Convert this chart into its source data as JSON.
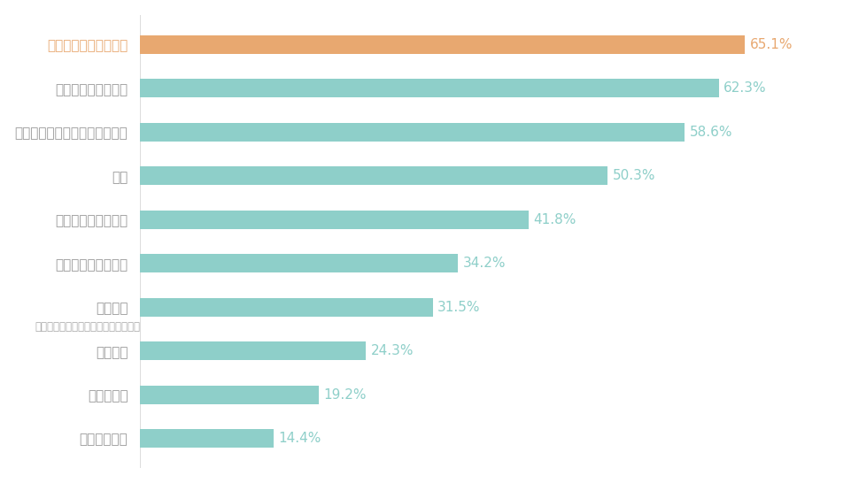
{
  "categories": [
    "趣味・余暇の過ごし方",
    "消費・お金の使い方",
    "仕事とプライベートのバランス",
    "健康",
    "友人・知人との関係",
    "家族・親戚との関係",
    "金融資産",
    "夢・目標",
    "老後の生活",
    "住居・居住地"
  ],
  "category_subtitles": [
    "",
    "",
    "",
    "",
    "",
    "",
    "（貯蓄・株式・保険・投資信託など）",
    "",
    "",
    ""
  ],
  "values": [
    65.1,
    62.3,
    58.6,
    50.3,
    41.8,
    34.2,
    31.5,
    24.3,
    19.2,
    14.4
  ],
  "bar_colors": [
    "#E8A870",
    "#8ECFC9",
    "#8ECFC9",
    "#8ECFC9",
    "#8ECFC9",
    "#8ECFC9",
    "#8ECFC9",
    "#8ECFC9",
    "#8ECFC9",
    "#8ECFC9"
  ],
  "label_colors": [
    "#E8A870",
    "#8ECFC9",
    "#8ECFC9",
    "#8ECFC9",
    "#8ECFC9",
    "#8ECFC9",
    "#8ECFC9",
    "#8ECFC9",
    "#8ECFC9",
    "#8ECFC9"
  ],
  "ylabel_color_first": "#E8A870",
  "ylabel_color_rest": "#999999",
  "subtitle_color": "#aaaaaa",
  "background_color": "#ffffff",
  "xlim": [
    0,
    75
  ],
  "bar_height": 0.42,
  "value_label_fontsize": 11,
  "ytick_fontsize": 11,
  "subtitle_fontsize": 8.5,
  "figure_width": 9.62,
  "figure_height": 5.46
}
